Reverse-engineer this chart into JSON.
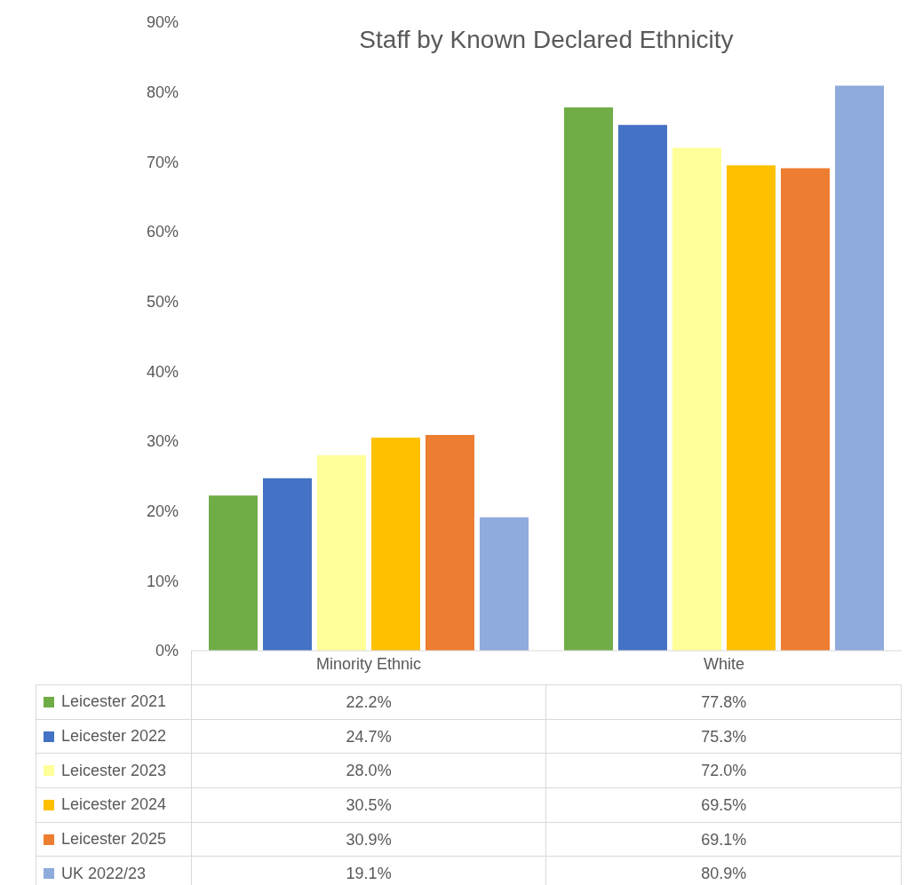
{
  "chart_data": {
    "type": "bar",
    "title": "Staff by Known Declared Ethnicity",
    "categories": [
      "Minority Ethnic",
      "White"
    ],
    "series": [
      {
        "name": "Leicester 2021",
        "color": "#70ad47",
        "values": [
          22.2,
          77.8
        ],
        "value_labels": [
          "22.2%",
          "77.8%"
        ]
      },
      {
        "name": "Leicester 2022",
        "color": "#4472c4",
        "values": [
          24.7,
          75.3
        ],
        "value_labels": [
          "24.7%",
          "75.3%"
        ]
      },
      {
        "name": "Leicester 2023",
        "color": "#ffff99",
        "values": [
          28.0,
          72.0
        ],
        "value_labels": [
          "28.0%",
          "72.0%"
        ]
      },
      {
        "name": "Leicester 2024",
        "color": "#ffc000",
        "values": [
          30.5,
          69.5
        ],
        "value_labels": [
          "30.5%",
          "69.5%"
        ]
      },
      {
        "name": "Leicester 2025",
        "color": "#ed7d31",
        "values": [
          30.9,
          69.1
        ],
        "value_labels": [
          "30.9%",
          "69.1%"
        ]
      },
      {
        "name": "UK 2022/23",
        "color": "#8faadc",
        "values": [
          19.1,
          80.9
        ],
        "value_labels": [
          "19.1%",
          "80.9%"
        ]
      }
    ],
    "ylim": [
      0,
      90
    ],
    "yticks": [
      {
        "value": 0,
        "label": "0%"
      },
      {
        "value": 10,
        "label": "10%"
      },
      {
        "value": 20,
        "label": "20%"
      },
      {
        "value": 30,
        "label": "30%"
      },
      {
        "value": 40,
        "label": "40%"
      },
      {
        "value": 50,
        "label": "50%"
      },
      {
        "value": 60,
        "label": "60%"
      },
      {
        "value": 70,
        "label": "70%"
      },
      {
        "value": 80,
        "label": "80%"
      },
      {
        "value": 90,
        "label": "90%"
      }
    ],
    "grid": false,
    "legend": "bottom"
  }
}
